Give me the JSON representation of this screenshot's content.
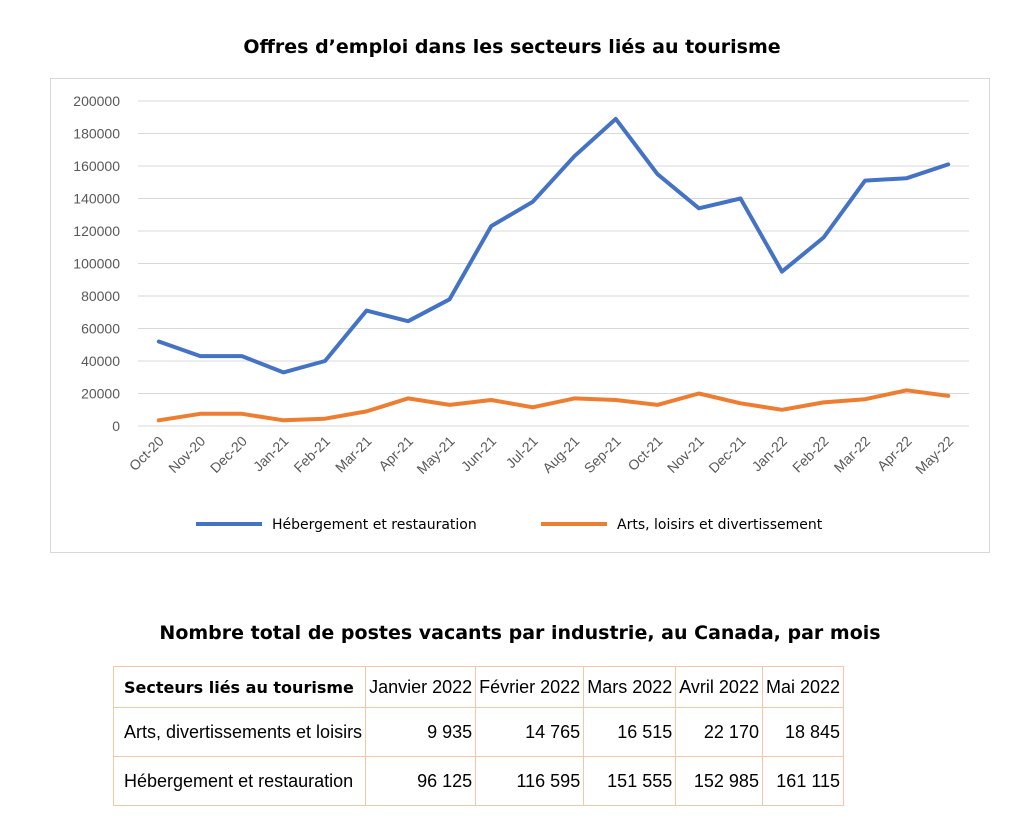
{
  "chart_data": {
    "type": "line",
    "title": "Offres d’emploi dans les secteurs liés au tourisme",
    "categories": [
      "Oct-20",
      "Nov-20",
      "Dec-20",
      "Jan-21",
      "Feb-21",
      "Mar-21",
      "Apr-21",
      "May-21",
      "Jun-21",
      "Jul-21",
      "Aug-21",
      "Sep-21",
      "Oct-21",
      "Nov-21",
      "Dec-21",
      "Jan-22",
      "Feb-22",
      "Mar-22",
      "Apr-22",
      "May-22"
    ],
    "ylim": [
      0,
      200000
    ],
    "yticks": [
      0,
      20000,
      40000,
      60000,
      80000,
      100000,
      120000,
      140000,
      160000,
      180000,
      200000
    ],
    "grid": true,
    "legend_position": "bottom",
    "series": [
      {
        "name": "Hébergement et restauration",
        "color": "#4472c4",
        "values": [
          52000,
          43000,
          43000,
          33000,
          40000,
          71000,
          64500,
          78000,
          123000,
          138000,
          166000,
          189000,
          155000,
          134000,
          140000,
          95000,
          116000,
          151000,
          152500,
          161000
        ]
      },
      {
        "name": "Arts, loisirs et divertissement",
        "color": "#ed7d31",
        "values": [
          3500,
          7500,
          7500,
          3500,
          4500,
          9000,
          17000,
          13000,
          16000,
          11500,
          17000,
          16000,
          13000,
          20000,
          14000,
          10000,
          14500,
          16500,
          22000,
          18500
        ]
      }
    ]
  },
  "table": {
    "title": "Nombre total de postes vacants par industrie, au Canada, par mois",
    "header": [
      "Secteurs liés au tourisme",
      "Janvier 2022",
      "Février 2022",
      "Mars 2022",
      "Avril 2022",
      "Mai 2022"
    ],
    "rows": [
      [
        "Arts, divertissements et loisirs",
        "9 935",
        "14 765",
        "16 515",
        "22 170",
        "18 845"
      ],
      [
        "Hébergement et restauration",
        "96 125",
        "116 595",
        "151 555",
        "152 985",
        "161 115"
      ]
    ]
  }
}
